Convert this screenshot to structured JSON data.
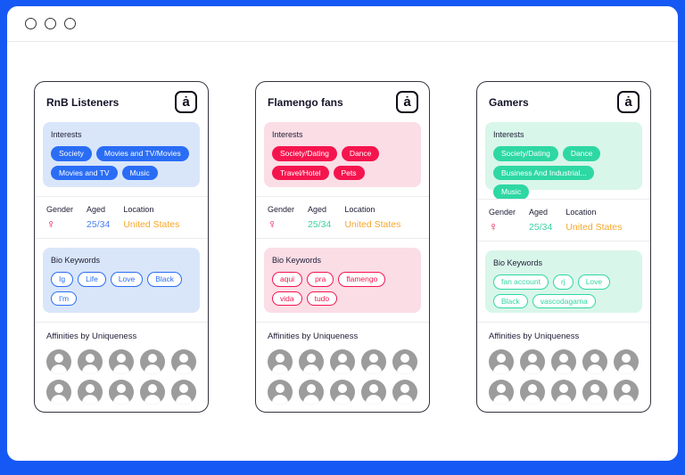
{
  "window": {
    "controls": [
      "close",
      "minimize",
      "maximize"
    ]
  },
  "logo_glyph": "ȧ",
  "cards": [
    {
      "title": "RnB Listeners",
      "accent": "#2a6df5",
      "light": "#d9e6fa",
      "interests_label": "Interests",
      "interests": [
        "Society",
        "Movies and TV/Movies",
        "Movies and TV",
        "Music"
      ],
      "gender_label": "Gender",
      "aged_label": "Aged",
      "location_label": "Location",
      "gender_symbol": "♀",
      "gender_color": "#f0134d",
      "aged_value": "25/34",
      "aged_color": "#4a7df6",
      "location_value": "United States",
      "location_color": "#f6a72b",
      "bio_label": "Bio Keywords",
      "bio_keywords": [
        "Ig",
        "Life",
        "Love",
        "Black",
        "I'm"
      ],
      "affinities_label": "Affinities by Uniqueness"
    },
    {
      "title": "Flamengo fans",
      "accent": "#f5154e",
      "light": "#fbdde6",
      "interests_label": "Interests",
      "interests": [
        "Society/Dating",
        "Dance",
        "Travel/Hotel",
        "Pets"
      ],
      "gender_label": "Gender",
      "aged_label": "Aged",
      "location_label": "Location",
      "gender_symbol": "♀",
      "gender_color": "#f0134d",
      "aged_value": "25/34",
      "aged_color": "#3ed0a2",
      "location_value": "United States",
      "location_color": "#f6a72b",
      "bio_label": "Bio Keywords",
      "bio_keywords": [
        "aqui",
        "pra",
        "flamengo",
        "vida",
        "tudo"
      ],
      "affinities_label": "Affinities by Uniqueness"
    },
    {
      "title": "Gamers",
      "accent": "#2ed8a3",
      "light": "#d9f6ea",
      "interests_label": "Interests",
      "interests": [
        "Society/Dating",
        "Dance",
        "Business And Industrial...",
        "Music"
      ],
      "gender_label": "Gender",
      "aged_label": "Aged",
      "location_label": "Location",
      "gender_symbol": "♀",
      "gender_color": "#f0134d",
      "aged_value": "25/34",
      "aged_color": "#3ed0a2",
      "location_value": "United States",
      "location_color": "#f6a72b",
      "bio_label": "Bio Keywords",
      "bio_keywords": [
        "fan account",
        "rj",
        "Love",
        "Black",
        "vascodagama"
      ],
      "affinities_label": "Affinities by Uniqueness"
    }
  ]
}
